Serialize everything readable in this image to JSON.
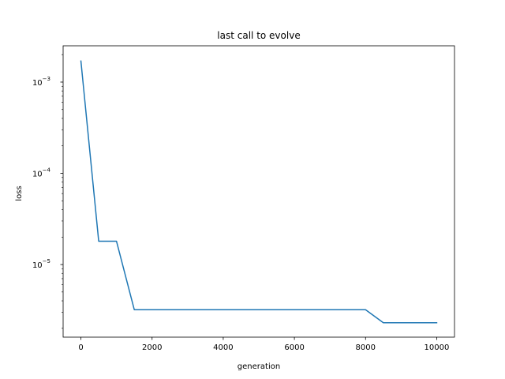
{
  "chart_data": {
    "type": "line",
    "title": "last call to evolve",
    "xlabel": "generation",
    "ylabel": "loss",
    "yscale": "log",
    "xlim": [
      -500,
      10500
    ],
    "ylim": [
      1.6e-06,
      0.0025
    ],
    "grid": false,
    "legend": "none",
    "x_ticks": [
      {
        "value": 0,
        "label": "0"
      },
      {
        "value": 2000,
        "label": "2000"
      },
      {
        "value": 4000,
        "label": "4000"
      },
      {
        "value": 6000,
        "label": "6000"
      },
      {
        "value": 8000,
        "label": "8000"
      },
      {
        "value": 10000,
        "label": "10000"
      }
    ],
    "y_ticks": [
      {
        "value": 0.001,
        "base": "10",
        "exp": "−3"
      },
      {
        "value": 0.0001,
        "base": "10",
        "exp": "−4"
      },
      {
        "value": 1e-05,
        "base": "10",
        "exp": "−5"
      }
    ],
    "series": [
      {
        "color": "#1f77b4",
        "x": [
          0,
          500,
          1000,
          1500,
          2000,
          2500,
          3000,
          3500,
          4000,
          4500,
          5000,
          5500,
          6000,
          6500,
          7000,
          7500,
          8000,
          8500,
          9000,
          9500,
          10000
        ],
        "y": [
          0.0017,
          1.8e-05,
          1.8e-05,
          3.2e-06,
          3.2e-06,
          3.2e-06,
          3.2e-06,
          3.2e-06,
          3.2e-06,
          3.2e-06,
          3.2e-06,
          3.2e-06,
          3.2e-06,
          3.2e-06,
          3.2e-06,
          3.2e-06,
          3.2e-06,
          2.3e-06,
          2.3e-06,
          2.3e-06,
          2.3e-06
        ]
      }
    ]
  }
}
